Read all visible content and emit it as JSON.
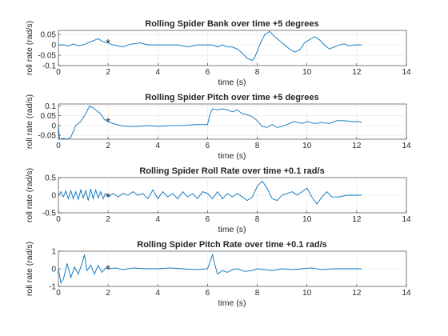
{
  "chart_data": [
    {
      "type": "line",
      "title": "Rolling Spider Bank over time +5 degrees",
      "xlabel": "time (s)",
      "ylabel": "roll rate (rad/s)",
      "xlim": [
        0,
        14
      ],
      "ylim": [
        -0.1,
        0.07
      ],
      "xticks": [
        "0",
        "2",
        "4",
        "6",
        "8",
        "10",
        "12",
        "14"
      ],
      "yticks": [
        {
          "v": 0.05,
          "t": "0.05"
        },
        {
          "v": 0,
          "t": "0"
        },
        {
          "v": -0.05,
          "t": "-0.05"
        },
        {
          "v": -0.1,
          "t": "-0.1"
        }
      ],
      "grid": true,
      "color": "#0072bd",
      "marker": {
        "x": 2.0,
        "y": 0.01,
        "symbol": "*",
        "color": "#ff0000"
      },
      "x": [
        0,
        0.2,
        0.4,
        0.6,
        0.8,
        1.0,
        1.2,
        1.4,
        1.6,
        1.8,
        2.0,
        2.2,
        2.4,
        2.6,
        2.8,
        3.0,
        3.3,
        3.6,
        4.0,
        4.4,
        4.8,
        5.2,
        5.6,
        6.0,
        6.2,
        6.4,
        6.6,
        6.8,
        7.0,
        7.2,
        7.4,
        7.6,
        7.8,
        7.9,
        8.1,
        8.3,
        8.5,
        8.7,
        8.9,
        9.1,
        9.3,
        9.5,
        9.7,
        9.9,
        10.1,
        10.3,
        10.5,
        10.7,
        10.9,
        11.1,
        11.3,
        11.5,
        11.7,
        11.9,
        12.1,
        12.2
      ],
      "y": [
        0.0,
        0.0,
        -0.005,
        0.005,
        -0.005,
        0.0,
        0.01,
        0.02,
        0.03,
        0.015,
        0.01,
        0.0,
        -0.005,
        -0.01,
        0.0,
        0.005,
        0.01,
        0.0,
        0.0,
        0.0,
        0.0,
        -0.01,
        0.0,
        0.0,
        0.0,
        -0.01,
        0.0,
        -0.01,
        -0.01,
        -0.02,
        -0.04,
        -0.065,
        -0.075,
        -0.06,
        0.0,
        0.05,
        0.065,
        0.04,
        0.02,
        0.0,
        -0.02,
        -0.035,
        -0.025,
        0.01,
        0.025,
        0.04,
        0.025,
        0.0,
        -0.02,
        -0.01,
        0.0,
        0.005,
        -0.005,
        0.0,
        0.0,
        0.0
      ]
    },
    {
      "type": "line",
      "title": "Rolling Spider Pitch over time +5 degrees",
      "xlabel": "time (s)",
      "ylabel": "roll rate (rad/s)",
      "xlim": [
        0,
        14
      ],
      "ylim": [
        -0.07,
        0.11
      ],
      "xticks": [
        "0",
        "2",
        "4",
        "6",
        "8",
        "10",
        "12",
        "14"
      ],
      "yticks": [
        {
          "v": 0.1,
          "t": "0.1"
        },
        {
          "v": 0.05,
          "t": "0.05"
        },
        {
          "v": 0,
          "t": "0"
        },
        {
          "v": -0.05,
          "t": "-0.05"
        }
      ],
      "grid": true,
      "color": "#0072bd",
      "marker": {
        "x": 2.0,
        "y": 0.02,
        "symbol": "*",
        "color": "#ff0000"
      },
      "x": [
        0,
        0.05,
        0.2,
        0.35,
        0.5,
        0.7,
        0.9,
        1.1,
        1.25,
        1.4,
        1.55,
        1.7,
        1.85,
        2.0,
        2.2,
        2.5,
        2.8,
        3.2,
        3.6,
        4.0,
        4.5,
        5.0,
        5.5,
        6.0,
        6.1,
        6.2,
        6.4,
        6.6,
        6.8,
        7.0,
        7.2,
        7.4,
        7.6,
        7.8,
        8.0,
        8.2,
        8.4,
        8.6,
        8.8,
        9.0,
        9.2,
        9.5,
        9.8,
        10.0,
        10.3,
        10.6,
        10.9,
        11.2,
        11.5,
        11.8,
        12.1,
        12.2
      ],
      "y": [
        0.0,
        -0.07,
        -0.065,
        -0.07,
        -0.06,
        0.0,
        0.02,
        0.06,
        0.1,
        0.09,
        0.075,
        0.06,
        0.03,
        0.02,
        0.01,
        0.0,
        -0.005,
        -0.005,
        0.0,
        -0.005,
        0.0,
        0.0,
        0.005,
        0.005,
        0.06,
        0.085,
        0.08,
        0.085,
        0.08,
        0.07,
        0.08,
        0.06,
        0.055,
        0.045,
        0.025,
        -0.005,
        -0.01,
        0.005,
        -0.01,
        -0.005,
        0.005,
        0.02,
        0.01,
        0.02,
        0.01,
        0.015,
        0.01,
        0.025,
        0.025,
        0.02,
        0.02,
        0.015
      ]
    },
    {
      "type": "line",
      "title": "Rolling Spider Roll Rate over time +0.1 rad/s",
      "xlabel": "time (s)",
      "ylabel": "roll rate (rad/s)",
      "xlim": [
        0,
        14
      ],
      "ylim": [
        -0.5,
        0.5
      ],
      "xticks": [
        "0",
        "2",
        "4",
        "6",
        "8",
        "10",
        "12",
        "14"
      ],
      "yticks": [
        {
          "v": 0.5,
          "t": "0.5"
        },
        {
          "v": 0,
          "t": "0"
        },
        {
          "v": -0.5,
          "t": "-0.5"
        }
      ],
      "grid": true,
      "color": "#0072bd",
      "marker": {
        "x": 2.0,
        "y": -0.05,
        "symbol": "*",
        "color": "#ff0000"
      },
      "x": [
        0,
        0.1,
        0.2,
        0.3,
        0.4,
        0.5,
        0.6,
        0.7,
        0.8,
        0.9,
        1.0,
        1.1,
        1.2,
        1.3,
        1.4,
        1.5,
        1.6,
        1.7,
        1.8,
        1.9,
        2.0,
        2.2,
        2.4,
        2.6,
        2.8,
        3.0,
        3.2,
        3.4,
        3.6,
        3.8,
        4.0,
        4.2,
        4.4,
        4.6,
        4.8,
        5.0,
        5.2,
        5.4,
        5.6,
        5.8,
        6.0,
        6.2,
        6.4,
        6.6,
        6.8,
        7.0,
        7.2,
        7.4,
        7.6,
        7.8,
        8.0,
        8.2,
        8.4,
        8.6,
        8.8,
        9.0,
        9.2,
        9.4,
        9.6,
        9.8,
        10.0,
        10.2,
        10.4,
        10.6,
        10.8,
        11.0,
        11.3,
        11.6,
        11.9,
        12.2
      ],
      "y": [
        0.0,
        0.1,
        -0.05,
        0.12,
        -0.1,
        0.13,
        -0.1,
        0.1,
        -0.12,
        0.15,
        -0.08,
        0.13,
        -0.15,
        0.18,
        -0.1,
        0.15,
        -0.08,
        0.1,
        -0.1,
        0.05,
        -0.05,
        0.05,
        -0.05,
        0.05,
        0.0,
        0.1,
        0.0,
        0.05,
        -0.1,
        0.15,
        -0.1,
        0.1,
        -0.05,
        0.05,
        -0.1,
        0.1,
        -0.05,
        0.05,
        -0.1,
        0.1,
        0.05,
        -0.1,
        0.1,
        -0.1,
        0.05,
        -0.05,
        0.05,
        -0.05,
        -0.15,
        -0.05,
        0.25,
        0.4,
        0.2,
        -0.1,
        -0.15,
        0.0,
        0.05,
        0.1,
        0.0,
        0.1,
        0.2,
        -0.05,
        -0.25,
        -0.05,
        0.1,
        -0.05,
        -0.05,
        0.0,
        0.0,
        0.0
      ]
    },
    {
      "type": "line",
      "title": "Rolling Spider Pitch Rate over time +0.1 rad/s",
      "xlabel": "time (s)",
      "ylabel": "roll rate (rad/s)",
      "xlim": [
        0,
        14
      ],
      "ylim": [
        -1,
        1
      ],
      "xticks": [
        "0",
        "2",
        "4",
        "6",
        "8",
        "10",
        "12",
        "14"
      ],
      "yticks": [
        {
          "v": 1,
          "t": "1"
        },
        {
          "v": 0,
          "t": "0"
        },
        {
          "v": -1,
          "t": "-1"
        }
      ],
      "grid": true,
      "color": "#0072bd",
      "marker": {
        "x": 2.0,
        "y": 0.0,
        "symbol": "*",
        "color": "#ff0000"
      },
      "x": [
        0,
        0.1,
        0.2,
        0.35,
        0.5,
        0.65,
        0.8,
        0.95,
        1.05,
        1.15,
        1.3,
        1.45,
        1.6,
        1.75,
        1.9,
        2.0,
        2.3,
        2.6,
        3.0,
        3.5,
        4.0,
        4.5,
        5.0,
        5.5,
        6.0,
        6.1,
        6.2,
        6.3,
        6.4,
        6.6,
        6.8,
        7.0,
        7.2,
        7.5,
        7.8,
        8.0,
        8.3,
        8.6,
        9.0,
        9.4,
        9.8,
        10.2,
        10.6,
        11.0,
        11.4,
        11.8,
        12.2
      ],
      "y": [
        0.0,
        -0.8,
        -0.6,
        0.3,
        -0.5,
        0.1,
        -0.3,
        0.3,
        0.8,
        -0.1,
        0.2,
        -0.3,
        0.2,
        -0.2,
        0.05,
        0.0,
        0.05,
        -0.05,
        0.05,
        0.0,
        0.0,
        0.05,
        0.0,
        -0.05,
        0.0,
        0.4,
        0.8,
        0.2,
        -0.3,
        -0.1,
        -0.2,
        -0.05,
        0.0,
        -0.15,
        -0.1,
        0.0,
        -0.05,
        -0.1,
        0.0,
        -0.05,
        0.0,
        0.05,
        -0.05,
        0.0,
        0.0,
        0.0,
        0.0
      ]
    }
  ]
}
